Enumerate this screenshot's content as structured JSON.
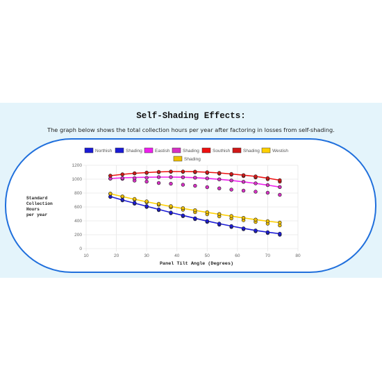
{
  "header": {
    "title": "Self-Shading Effects:",
    "subtitle": "The graph below shows the total collection hours per year after factoring in losses from self-shading."
  },
  "chart_data": {
    "type": "scatter",
    "xlabel": "Panel Tilt Angle (Degrees)",
    "ylabel_lines": [
      "Standard",
      "Collection",
      "Hours",
      "per year"
    ],
    "xlim": [
      10,
      80
    ],
    "ylim": [
      0,
      1200
    ],
    "xticks": [
      10,
      20,
      30,
      40,
      50,
      60,
      70,
      80
    ],
    "yticks": [
      0,
      200,
      400,
      600,
      800,
      1000,
      1200
    ],
    "grid": true,
    "legend_position": "top",
    "x": [
      18,
      22,
      26,
      30,
      34,
      38,
      42,
      46,
      50,
      54,
      58,
      62,
      66,
      70,
      74
    ],
    "series": [
      {
        "name": "Northish",
        "kind": "line",
        "color": "#1a1ad6",
        "values": [
          750,
          700,
          655,
          610,
          565,
          520,
          478,
          437,
          397,
          360,
          325,
          292,
          262,
          237,
          215
        ]
      },
      {
        "name": "Shading",
        "kind": "dots",
        "color": "#1a1ad6",
        "values": [
          [
            745,
            748
          ],
          [
            695,
            705
          ],
          [
            648,
            660
          ],
          [
            600,
            612
          ],
          [
            555,
            565
          ],
          [
            510,
            520
          ],
          [
            468,
            478
          ],
          [
            425,
            437
          ],
          [
            385,
            397
          ],
          [
            345,
            360
          ],
          [
            312,
            325
          ],
          [
            280,
            292
          ],
          [
            250,
            262
          ],
          [
            225,
            237
          ],
          [
            200,
            215
          ]
        ]
      },
      {
        "name": "Eastish",
        "kind": "line",
        "color": "#ee1fee",
        "values": [
          1010,
          1020,
          1025,
          1028,
          1030,
          1030,
          1028,
          1022,
          1012,
          998,
          982,
          962,
          940,
          915,
          887
        ]
      },
      {
        "name": "Shading",
        "kind": "dots",
        "color": "#d630c4",
        "values": [
          [
            1010,
            1008
          ],
          [
            1005,
            1015
          ],
          [
            980,
            1015
          ],
          [
            965,
            1020
          ],
          [
            945,
            1030
          ],
          [
            935,
            1030
          ],
          [
            920,
            1028
          ],
          [
            905,
            1022
          ],
          [
            885,
            1012
          ],
          [
            868,
            998
          ],
          [
            850,
            982
          ],
          [
            835,
            962
          ],
          [
            820,
            940
          ],
          [
            805,
            915
          ],
          [
            775,
            887
          ]
        ]
      },
      {
        "name": "Southish",
        "kind": "line",
        "color": "#ee1010",
        "values": [
          1050,
          1070,
          1085,
          1095,
          1105,
          1110,
          1110,
          1108,
          1100,
          1090,
          1075,
          1058,
          1040,
          1015,
          985
        ]
      },
      {
        "name": "Shading",
        "kind": "dots",
        "color": "#d01818",
        "values": [
          [
            1050,
            1050
          ],
          [
            1068,
            1070
          ],
          [
            1083,
            1085
          ],
          [
            1090,
            1095
          ],
          [
            1100,
            1105
          ],
          [
            1106,
            1110
          ],
          [
            1105,
            1110
          ],
          [
            1100,
            1108
          ],
          [
            1090,
            1100
          ],
          [
            1080,
            1090
          ],
          [
            1065,
            1075
          ],
          [
            1045,
            1058
          ],
          [
            1025,
            1040
          ],
          [
            1000,
            1015
          ],
          [
            965,
            985
          ]
        ]
      },
      {
        "name": "Westish",
        "kind": "line",
        "color": "#ffd000",
        "values": [
          790,
          750,
          710,
          675,
          640,
          607,
          578,
          550,
          522,
          495,
          468,
          442,
          418,
          395,
          375
        ]
      },
      {
        "name": "Shading",
        "kind": "dots",
        "color": "#f0c000",
        "values": [
          [
            790,
            792
          ],
          [
            748,
            752
          ],
          [
            708,
            715
          ],
          [
            668,
            680
          ],
          [
            632,
            645
          ],
          [
            595,
            612
          ],
          [
            560,
            583
          ],
          [
            525,
            553
          ],
          [
            495,
            525
          ],
          [
            465,
            498
          ],
          [
            435,
            470
          ],
          [
            410,
            443
          ],
          [
            385,
            418
          ],
          [
            360,
            395
          ],
          [
            335,
            375
          ]
        ]
      }
    ]
  }
}
